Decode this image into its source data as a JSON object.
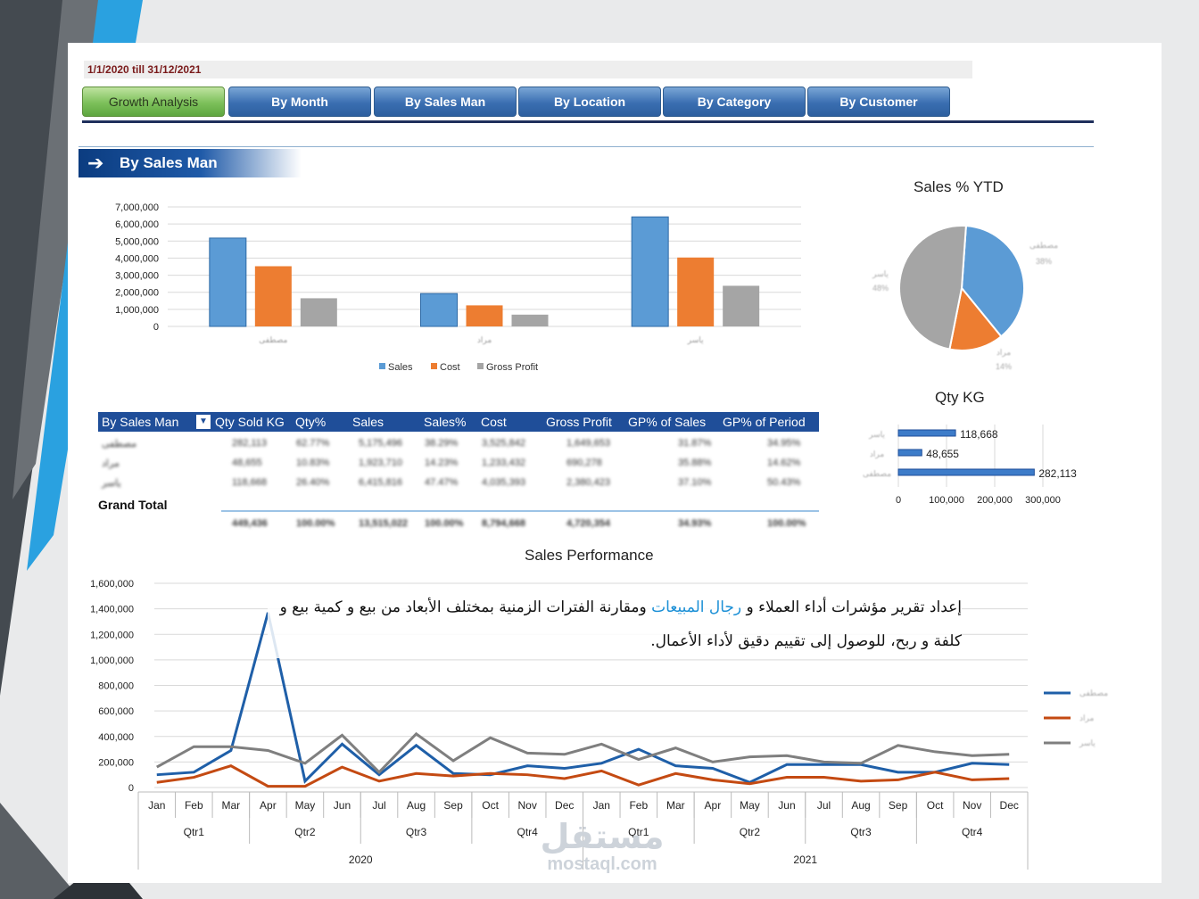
{
  "header": {
    "date_range": "1/1/2020 till 31/12/2021",
    "tabs": [
      {
        "label": "Growth  Analysis",
        "active": true
      },
      {
        "label": "By Month",
        "active": false
      },
      {
        "label": "By Sales Man",
        "active": false
      },
      {
        "label": "By Location",
        "active": false
      },
      {
        "label": "By Category",
        "active": false
      },
      {
        "label": "By Customer",
        "active": false
      }
    ]
  },
  "section": {
    "title": "By Sales Man",
    "icon": "arrow-right-icon"
  },
  "colors": {
    "sales": "#5b9bd5",
    "cost": "#ed7d31",
    "gross_profit": "#a5a5a5",
    "nav_blue": "#1f4e99",
    "active_tab": "#7cc05a"
  },
  "charts": {
    "bar_by_salesman": {
      "type": "bar",
      "categories": [
        "مصطفى",
        "مراد",
        "ياسر"
      ],
      "series": [
        {
          "name": "Sales",
          "values": [
            5175496,
            1923710,
            6415816
          ]
        },
        {
          "name": "Cost",
          "values": [
            3525842,
            1233432,
            4035393
          ]
        },
        {
          "name": "Gross Profit",
          "values": [
            1649653,
            690278,
            2380423
          ]
        }
      ],
      "ylim": [
        0,
        7000000
      ],
      "yticks": [
        "7,000,000",
        "6,000,000",
        "5,000,000",
        "4,000,000",
        "3,000,000",
        "2,000,000",
        "1,000,000",
        "0"
      ],
      "legend": "bottom",
      "grid": true
    },
    "pie_sales_ytd": {
      "type": "pie",
      "title": "Sales % YTD",
      "slices": [
        {
          "label": "مصطفى",
          "value": 38
        },
        {
          "label": "مراد",
          "value": 14
        },
        {
          "label": "ياسر",
          "value": 48
        }
      ],
      "label_texts": [
        "مصطفى",
        "38%",
        "مراد",
        "14%",
        "ياسر",
        "48%"
      ]
    },
    "qty_kg": {
      "type": "bar",
      "title": "Qty KG",
      "categories": [
        "ياسر",
        "مراد",
        "مصطفى"
      ],
      "values": [
        118668,
        48655,
        282113
      ],
      "value_labels": [
        "118,668",
        "48,655",
        "282,113"
      ],
      "xticks": [
        "0",
        "100,000",
        "200,000",
        "300,000"
      ],
      "xlim": [
        0,
        300000
      ]
    },
    "sales_performance": {
      "type": "line",
      "title": "Sales Performance",
      "months": [
        "Jan",
        "Feb",
        "Mar",
        "Apr",
        "May",
        "Jun",
        "Jul",
        "Aug",
        "Sep",
        "Oct",
        "Nov",
        "Dec",
        "Jan",
        "Feb",
        "Mar",
        "Apr",
        "May",
        "Jun",
        "Jul",
        "Aug",
        "Sep",
        "Oct",
        "Nov",
        "Dec"
      ],
      "quarters": [
        "Qtr1",
        "Qtr2",
        "Qtr3",
        "Qtr4",
        "Qtr1",
        "Qtr2",
        "Qtr3",
        "Qtr4"
      ],
      "years": [
        "2020",
        "2021"
      ],
      "yticks": [
        "1,600,000",
        "1,400,000",
        "1,200,000",
        "1,000,000",
        "800,000",
        "600,000",
        "400,000",
        "200,000",
        "0"
      ],
      "ylim": [
        0,
        1600000
      ],
      "series": [
        {
          "name": "مصطفى",
          "color": "#1f5fa8",
          "values": [
            100000,
            120000,
            290000,
            1370000,
            50000,
            340000,
            100000,
            330000,
            110000,
            100000,
            170000,
            150000,
            190000,
            300000,
            170000,
            150000,
            40000,
            180000,
            180000,
            180000,
            120000,
            120000,
            190000,
            180000
          ]
        },
        {
          "name": "مراد",
          "color": "#c44a12",
          "values": [
            40000,
            80000,
            170000,
            10000,
            10000,
            160000,
            50000,
            110000,
            90000,
            110000,
            100000,
            70000,
            130000,
            20000,
            110000,
            60000,
            30000,
            80000,
            80000,
            50000,
            60000,
            120000,
            60000,
            70000
          ]
        },
        {
          "name": "ياسر",
          "color": "#7f7f7f",
          "values": [
            160000,
            320000,
            320000,
            290000,
            190000,
            410000,
            120000,
            420000,
            210000,
            390000,
            270000,
            260000,
            340000,
            220000,
            310000,
            200000,
            240000,
            250000,
            200000,
            190000,
            330000,
            280000,
            250000,
            260000
          ]
        }
      ],
      "legend": "right"
    }
  },
  "table": {
    "columns": [
      "By Sales Man",
      "Qty Sold KG",
      "Qty%",
      "Sales",
      "Sales%",
      "Cost",
      "Gross Profit",
      "GP% of Sales",
      "GP% of Period"
    ],
    "rows": [
      [
        "مصطفى",
        "282,113",
        "62.77%",
        "5,175,496",
        "38.29%",
        "3,525,842",
        "1,649,653",
        "31.87%",
        "34.95%"
      ],
      [
        "مراد",
        "48,655",
        "10.83%",
        "1,923,710",
        "14.23%",
        "1,233,432",
        "690,278",
        "35.88%",
        "14.62%"
      ],
      [
        "ياسر",
        "118,668",
        "26.40%",
        "6,415,816",
        "47.47%",
        "4,035,393",
        "2,380,423",
        "37.10%",
        "50.43%"
      ]
    ],
    "total_label": "Grand Total",
    "total": [
      "449,436",
      "100.00%",
      "13,515,022",
      "100.00%",
      "8,794,668",
      "4,720,354",
      "34.93%",
      "100.00%"
    ]
  },
  "overlay_text": {
    "part1": "إعداد تقرير مؤشرات أداء العملاء و ",
    "highlight": "رجال المبيعات",
    "part2": " ومقارنة الفترات الزمنية بمختلف الأبعاد من بيع و كمية بيع و كلفة و ربح، للوصول إلى تقييم دقيق لأداء الأعمال."
  },
  "watermark": {
    "arabic": "مستقل",
    "latin": "mostaql.com"
  }
}
